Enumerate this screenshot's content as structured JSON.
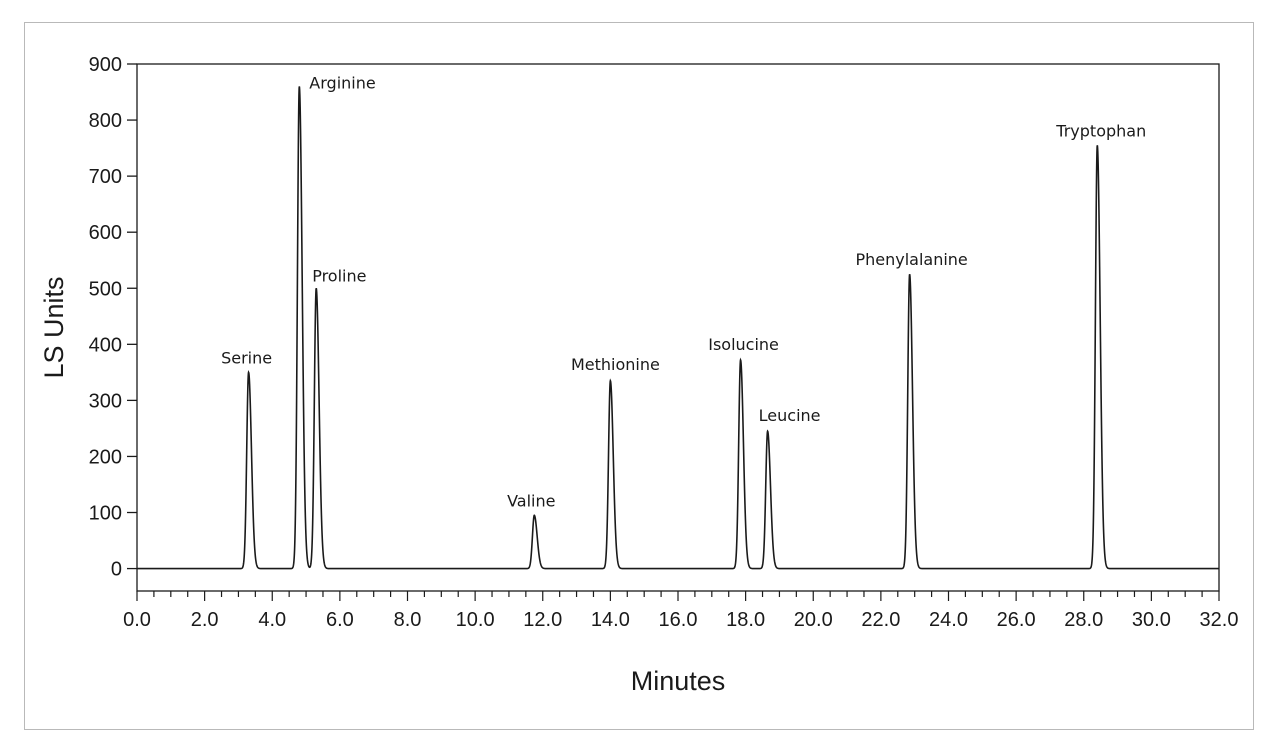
{
  "chart_data": {
    "type": "line",
    "title": "",
    "xlabel": "Minutes",
    "ylabel": "LS Units",
    "xlim": [
      0,
      32
    ],
    "ylim": [
      -40,
      900
    ],
    "x_major_ticks": [
      "0.0",
      "2.0",
      "4.0",
      "6.0",
      "8.0",
      "10.0",
      "12.0",
      "14.0",
      "16.0",
      "18.0",
      "20.0",
      "22.0",
      "24.0",
      "26.0",
      "28.0",
      "30.0",
      "32.0"
    ],
    "y_ticks": [
      "900",
      "800",
      "700",
      "600",
      "500",
      "400",
      "300",
      "200",
      "100",
      "0"
    ],
    "grid": false,
    "legend": "none",
    "line_color": "#1a1a1a",
    "peaks": [
      {
        "name": "Serine",
        "x": 3.3,
        "y": 350
      },
      {
        "name": "Arginine",
        "x": 4.8,
        "y": 860
      },
      {
        "name": "Proline",
        "x": 5.3,
        "y": 500
      },
      {
        "name": "Valine",
        "x": 11.75,
        "y": 95
      },
      {
        "name": "Methionine",
        "x": 14.0,
        "y": 335
      },
      {
        "name": "Isolucine",
        "x": 17.85,
        "y": 372
      },
      {
        "name": "Leucine",
        "x": 18.65,
        "y": 245
      },
      {
        "name": "Phenylalanine",
        "x": 22.85,
        "y": 525
      },
      {
        "name": "Tryptophan",
        "x": 28.4,
        "y": 755
      }
    ]
  }
}
